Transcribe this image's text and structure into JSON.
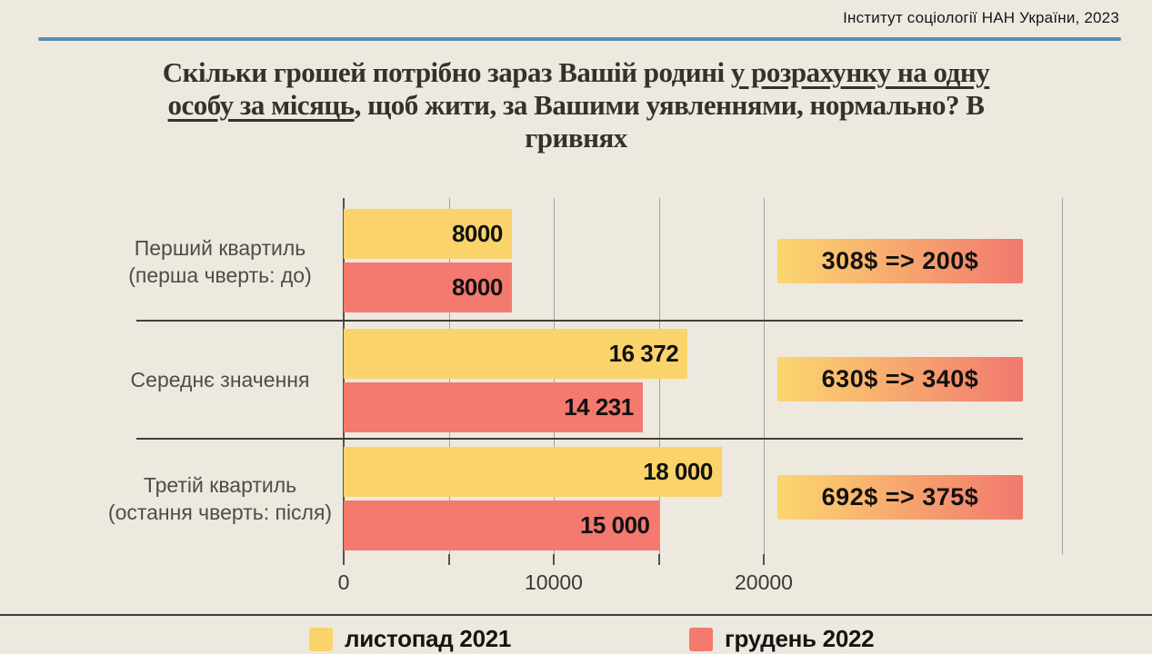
{
  "attribution": "Інститут соціології НАН України, 2023",
  "title": {
    "full": "Скільки грошей потрібно зараз Вашій родині у розрахунку на одну особу за місяць, щоб жити, за Вашими уявленнями, нормально? В гривнях",
    "lines": [
      [
        {
          "t": "Скільки грошей потрібно зараз Вашій родині ",
          "u": false
        },
        {
          "t": "у розрахунку на одну",
          "u": true
        }
      ],
      [
        {
          "t": "особу за місяць",
          "u": true
        },
        {
          "t": ", щоб жити, за Вашими уявленнями, нормально? В",
          "u": false
        }
      ],
      [
        {
          "t": "гривнях",
          "u": false
        }
      ]
    ]
  },
  "chart_data": {
    "type": "bar",
    "orientation": "horizontal",
    "title": "Скільки грошей потрібно зараз Вашій родині у розрахунку на одну особу за місяць, щоб жити, за Вашими уявленнями, нормально? В гривнях",
    "categories": [
      "Перший квартиль (перша чверть: до)",
      "Середнє значення",
      "Третій квартиль (остання чверть: після)"
    ],
    "category_lines": [
      [
        "Перший квартиль",
        "(перша чверть: до)"
      ],
      [
        "Середнє значення"
      ],
      [
        "Третій квартиль",
        "(остання чверть: після)"
      ]
    ],
    "series": [
      {
        "name": "листопад 2021",
        "color": "#FBD36B",
        "values": [
          8000,
          16372,
          18000
        ],
        "value_labels": [
          "8000",
          "16 372",
          "18 000"
        ]
      },
      {
        "name": "грудень 2022",
        "color": "#F4796E",
        "values": [
          8000,
          14231,
          15000
        ],
        "value_labels": [
          "8000",
          "14 231",
          "15 000"
        ]
      }
    ],
    "annotations": [
      "308$ => 200$",
      "630$ => 340$",
      "692$ => 375$"
    ],
    "x_ticks": [
      0,
      10000,
      20000
    ],
    "x_tick_labels": [
      "0",
      "10000",
      "20000"
    ],
    "gridlines": [
      0,
      5000,
      10000,
      15000,
      20000
    ],
    "xlim": [
      0,
      34200
    ],
    "grid": true,
    "legend_position": "bottom"
  },
  "colors": {
    "background": "#EDE9DF",
    "accent_rule": "#5A8CB4",
    "badge_gradient": [
      "#FBD76F",
      "#F2786E"
    ],
    "separator": "#3F3E37",
    "gridline": "#A5A29A",
    "axis": "#55534B",
    "title_text": "#32322E"
  }
}
